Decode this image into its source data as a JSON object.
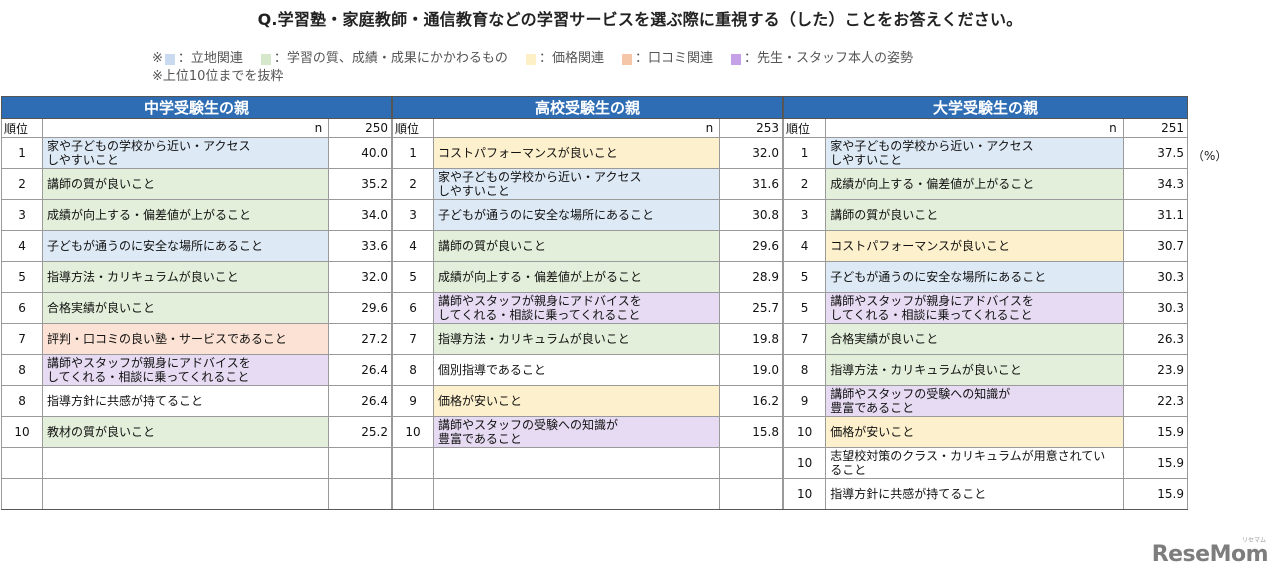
{
  "title": "Q.学習塾・家庭教師・通信教育などの学習サービスを選ぶ際に重視する（した）ことをお答えください。",
  "legend": {
    "prefix": "※",
    "items": [
      {
        "label": "：立地関連",
        "color": "#c9d9ef"
      },
      {
        "label": "：学習の質、成績・成果にかかわるもの",
        "color": "#d6e8cc"
      },
      {
        "label": "：価格関連",
        "color": "#fdf0c6"
      },
      {
        "label": "：口コミ関連",
        "color": "#f5c7a8"
      },
      {
        "label": "：先生・スタッフ本人の姿勢",
        "color": "#c5a2e8"
      }
    ],
    "note": "※上位10位までを抜粋"
  },
  "category_colors": {
    "location": "#dde9f5",
    "quality": "#e3efda",
    "price": "#fdf0cd",
    "review": "#fbe2d4",
    "staff": "#e6dbf2",
    "none": "#ffffff"
  },
  "unit": "（%）",
  "logo": {
    "text": "ReseMom",
    "kana": "リセマム"
  },
  "panels": [
    {
      "heading": "中学受験生の親",
      "rank_header": "順位",
      "n_label": "n",
      "n_value": "250",
      "rows": [
        {
          "rank": "1",
          "label": "家や子どもの学校から近い・アクセス\nしやすいこと",
          "value": "40.0",
          "cat": "location"
        },
        {
          "rank": "2",
          "label": "講師の質が良いこと",
          "value": "35.2",
          "cat": "quality"
        },
        {
          "rank": "3",
          "label": "成績が向上する・偏差値が上がること",
          "value": "34.0",
          "cat": "quality"
        },
        {
          "rank": "4",
          "label": "子どもが通うのに安全な場所にあること",
          "value": "33.6",
          "cat": "location"
        },
        {
          "rank": "5",
          "label": "指導方法・カリキュラムが良いこと",
          "value": "32.0",
          "cat": "quality"
        },
        {
          "rank": "6",
          "label": "合格実績が良いこと",
          "value": "29.6",
          "cat": "quality"
        },
        {
          "rank": "7",
          "label": "評判・口コミの良い塾・サービスであること",
          "value": "27.2",
          "cat": "review"
        },
        {
          "rank": "8",
          "label": "講師やスタッフが親身にアドバイスを\nしてくれる・相談に乗ってくれること",
          "value": "26.4",
          "cat": "staff"
        },
        {
          "rank": "8",
          "label": "指導方針に共感が持てること",
          "value": "26.4",
          "cat": "none"
        },
        {
          "rank": "10",
          "label": "教材の質が良いこと",
          "value": "25.2",
          "cat": "quality"
        },
        {
          "rank": "",
          "label": "",
          "value": "",
          "cat": "none"
        },
        {
          "rank": "",
          "label": "",
          "value": "",
          "cat": "none"
        }
      ]
    },
    {
      "heading": "高校受験生の親",
      "rank_header": "順位",
      "n_label": "n",
      "n_value": "253",
      "rows": [
        {
          "rank": "1",
          "label": "コストパフォーマンスが良いこと",
          "value": "32.0",
          "cat": "price"
        },
        {
          "rank": "2",
          "label": "家や子どもの学校から近い・アクセス\nしやすいこと",
          "value": "31.6",
          "cat": "location"
        },
        {
          "rank": "3",
          "label": "子どもが通うのに安全な場所にあること",
          "value": "30.8",
          "cat": "location"
        },
        {
          "rank": "4",
          "label": "講師の質が良いこと",
          "value": "29.6",
          "cat": "quality"
        },
        {
          "rank": "5",
          "label": "成績が向上する・偏差値が上がること",
          "value": "28.9",
          "cat": "quality"
        },
        {
          "rank": "6",
          "label": "講師やスタッフが親身にアドバイスを\nしてくれる・相談に乗ってくれること",
          "value": "25.7",
          "cat": "staff"
        },
        {
          "rank": "7",
          "label": "指導方法・カリキュラムが良いこと",
          "value": "19.8",
          "cat": "quality"
        },
        {
          "rank": "8",
          "label": "個別指導であること",
          "value": "19.0",
          "cat": "none"
        },
        {
          "rank": "9",
          "label": "価格が安いこと",
          "value": "16.2",
          "cat": "price"
        },
        {
          "rank": "10",
          "label": "講師やスタッフの受験への知識が\n豊富であること",
          "value": "15.8",
          "cat": "staff"
        },
        {
          "rank": "",
          "label": "",
          "value": "",
          "cat": "none"
        },
        {
          "rank": "",
          "label": "",
          "value": "",
          "cat": "none"
        }
      ]
    },
    {
      "heading": "大学受験生の親",
      "rank_header": "順位",
      "n_label": "n",
      "n_value": "251",
      "rows": [
        {
          "rank": "1",
          "label": "家や子どもの学校から近い・アクセス\nしやすいこと",
          "value": "37.5",
          "cat": "location"
        },
        {
          "rank": "2",
          "label": "成績が向上する・偏差値が上がること",
          "value": "34.3",
          "cat": "quality"
        },
        {
          "rank": "3",
          "label": "講師の質が良いこと",
          "value": "31.1",
          "cat": "quality"
        },
        {
          "rank": "4",
          "label": "コストパフォーマンスが良いこと",
          "value": "30.7",
          "cat": "price"
        },
        {
          "rank": "5",
          "label": "子どもが通うのに安全な場所にあること",
          "value": "30.3",
          "cat": "location"
        },
        {
          "rank": "5",
          "label": "講師やスタッフが親身にアドバイスを\nしてくれる・相談に乗ってくれること",
          "value": "30.3",
          "cat": "staff"
        },
        {
          "rank": "7",
          "label": "合格実績が良いこと",
          "value": "26.3",
          "cat": "quality"
        },
        {
          "rank": "8",
          "label": "指導方法・カリキュラムが良いこと",
          "value": "23.9",
          "cat": "quality"
        },
        {
          "rank": "9",
          "label": "講師やスタッフの受験への知識が\n豊富であること",
          "value": "22.3",
          "cat": "staff"
        },
        {
          "rank": "10",
          "label": "価格が安いこと",
          "value": "15.9",
          "cat": "price"
        },
        {
          "rank": "10",
          "label": "志望校対策のクラス・カリキュラムが用意されてい\nること",
          "value": "15.9",
          "cat": "none"
        },
        {
          "rank": "10",
          "label": "指導方針に共感が持てること",
          "value": "15.9",
          "cat": "none"
        }
      ]
    }
  ]
}
